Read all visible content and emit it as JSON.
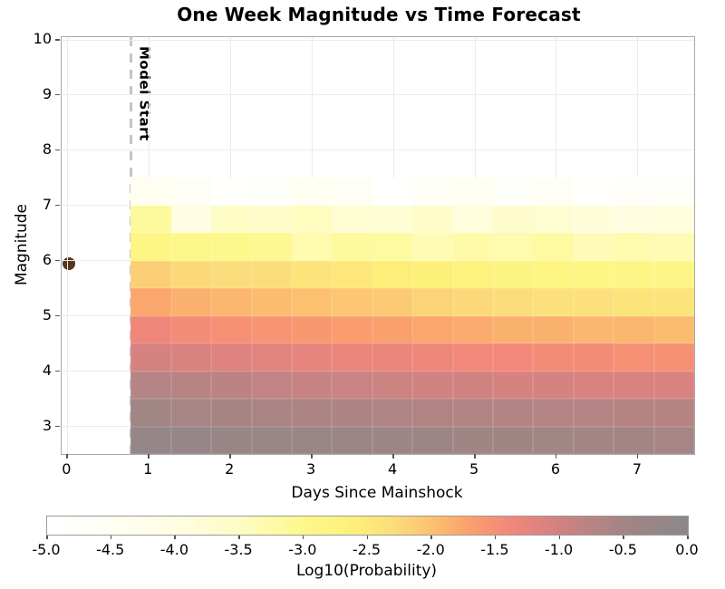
{
  "chart_data": {
    "type": "heatmap",
    "title": "One Week Magnitude vs Time Forecast",
    "xlabel": "Days Since Mainshock",
    "ylabel": "Magnitude",
    "xlim": [
      -0.07,
      7.69
    ],
    "ylim": [
      2.5,
      10.05
    ],
    "x_ticks": [
      0,
      1,
      2,
      3,
      4,
      5,
      6,
      7
    ],
    "y_ticks": [
      3,
      4,
      5,
      6,
      7,
      8,
      9,
      10
    ],
    "grid": true,
    "model_start_label": "Model Start",
    "model_start_day": 0.78,
    "mainshock": {
      "day": 0.02,
      "magnitude": 5.94,
      "color": "#57361c"
    },
    "bins": {
      "day_start": 0.78,
      "day_end": 7.69,
      "day_count": 14,
      "mag_top": 7.5,
      "mag_bottom": 2.5,
      "mag_step": 0.5
    },
    "rows_log10_probability_top_to_bottom": [
      {
        "mag_range": [
          7.0,
          7.5
        ],
        "values": [
          -4.45,
          -4.55,
          -4.85,
          -4.75,
          -4.5,
          -4.6,
          -4.9,
          -4.65,
          -4.5,
          -4.8,
          -4.55,
          -4.85,
          -4.7,
          -4.75
        ]
      },
      {
        "mag_range": [
          6.5,
          7.0
        ],
        "values": [
          -3.15,
          -4.0,
          -3.5,
          -3.55,
          -3.45,
          -3.7,
          -3.75,
          -3.55,
          -3.9,
          -3.6,
          -3.7,
          -3.85,
          -3.95,
          -3.9
        ]
      },
      {
        "mag_range": [
          6.0,
          6.5
        ],
        "values": [
          -2.85,
          -2.95,
          -3.0,
          -3.05,
          -3.3,
          -3.15,
          -3.2,
          -3.35,
          -3.25,
          -3.3,
          -3.2,
          -3.4,
          -3.3,
          -3.35
        ]
      },
      {
        "mag_range": [
          5.5,
          6.0
        ],
        "values": [
          -2.15,
          -2.25,
          -2.3,
          -2.3,
          -2.4,
          -2.45,
          -2.55,
          -2.6,
          -2.7,
          -2.75,
          -2.8,
          -2.85,
          -2.9,
          -2.9
        ]
      },
      {
        "mag_range": [
          5.0,
          5.5
        ],
        "values": [
          -1.75,
          -1.85,
          -1.9,
          -1.95,
          -2.0,
          -2.05,
          -2.1,
          -2.2,
          -2.25,
          -2.3,
          -2.35,
          -2.35,
          -2.4,
          -2.4
        ]
      },
      {
        "mag_range": [
          4.5,
          5.0
        ],
        "values": [
          -1.35,
          -1.45,
          -1.5,
          -1.55,
          -1.6,
          -1.65,
          -1.7,
          -1.75,
          -1.8,
          -1.85,
          -1.85,
          -1.9,
          -1.9,
          -1.95
        ]
      },
      {
        "mag_range": [
          4.0,
          4.5
        ],
        "values": [
          -1.05,
          -1.1,
          -1.15,
          -1.2,
          -1.25,
          -1.3,
          -1.3,
          -1.35,
          -1.4,
          -1.4,
          -1.45,
          -1.45,
          -1.5,
          -1.5
        ]
      },
      {
        "mag_range": [
          3.5,
          4.0
        ],
        "values": [
          -0.7,
          -0.75,
          -0.8,
          -0.85,
          -0.9,
          -0.92,
          -0.95,
          -1.0,
          -1.0,
          -1.05,
          -1.05,
          -1.1,
          -1.1,
          -1.1
        ]
      },
      {
        "mag_range": [
          3.0,
          3.5
        ],
        "values": [
          -0.45,
          -0.5,
          -0.52,
          -0.55,
          -0.58,
          -0.6,
          -0.62,
          -0.65,
          -0.65,
          -0.68,
          -0.7,
          -0.7,
          -0.72,
          -0.72
        ]
      },
      {
        "mag_range": [
          2.5,
          3.0
        ],
        "values": [
          -0.22,
          -0.25,
          -0.28,
          -0.3,
          -0.33,
          -0.35,
          -0.38,
          -0.4,
          -0.42,
          -0.44,
          -0.45,
          -0.47,
          -0.48,
          -0.5
        ]
      }
    ],
    "colorbar": {
      "label": "Log10(Probability)",
      "range": [
        -5.0,
        0.0
      ],
      "tick_labels": [
        "-5.0",
        "-4.5",
        "-4.0",
        "-3.5",
        "-3.0",
        "-2.5",
        "-2.0",
        "-1.5",
        "-1.0",
        "-0.5",
        "0.0"
      ],
      "stops": [
        {
          "v": -5.0,
          "c": "#ffffff"
        },
        {
          "v": -4.5,
          "c": "#fffef3"
        },
        {
          "v": -4.0,
          "c": "#fffde2"
        },
        {
          "v": -3.5,
          "c": "#fefcc5"
        },
        {
          "v": -3.0,
          "c": "#fdf88b"
        },
        {
          "v": -2.6,
          "c": "#fdf079"
        },
        {
          "v": -2.3,
          "c": "#fcdd7b"
        },
        {
          "v": -2.0,
          "c": "#fcc170"
        },
        {
          "v": -1.7,
          "c": "#faa06c"
        },
        {
          "v": -1.4,
          "c": "#f28879"
        },
        {
          "v": -1.1,
          "c": "#da8280"
        },
        {
          "v": -0.8,
          "c": "#bc8383"
        },
        {
          "v": -0.4,
          "c": "#9e8585"
        },
        {
          "v": 0.0,
          "c": "#8b8889"
        }
      ]
    }
  }
}
